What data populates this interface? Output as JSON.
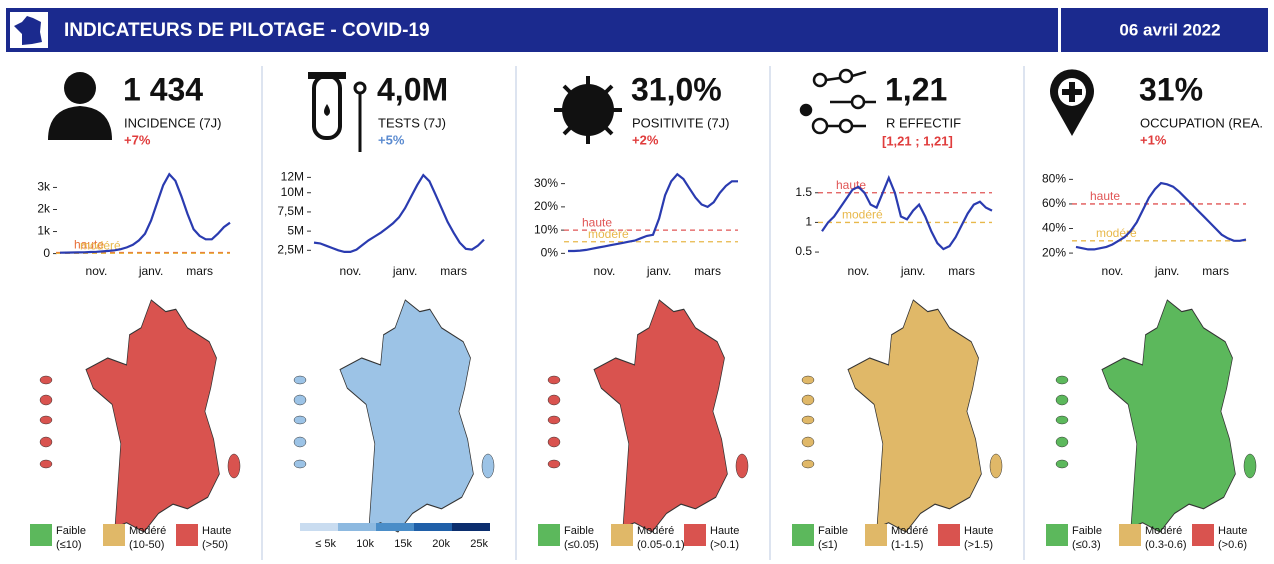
{
  "header": {
    "title": "INDICATEURS DE PILOTAGE - COVID-19",
    "date": "06 avril 2022"
  },
  "chart_data": [
    {
      "type": "line",
      "kpi": "1 434",
      "label": "INCIDENCE (7J)",
      "change": "+7%",
      "change_color": "#e03c3c",
      "color": "#2a3bb0",
      "categories": [
        null,
        null,
        null,
        null,
        null,
        null,
        "nov.",
        null,
        null,
        null,
        null,
        null,
        null,
        null,
        null,
        "janv.",
        null,
        null,
        null,
        null,
        null,
        null,
        null,
        "mars",
        null,
        null,
        null,
        null,
        null
      ],
      "values": [
        40,
        45,
        50,
        55,
        60,
        70,
        80,
        100,
        120,
        150,
        200,
        280,
        400,
        600,
        900,
        1500,
        2300,
        3100,
        3600,
        3300,
        2600,
        1800,
        1100,
        800,
        650,
        650,
        900,
        1200,
        1400
      ],
      "ylim": [
        -200,
        3700
      ],
      "yticks": [
        0,
        {
          "value": 1000,
          "label": "1k"
        },
        {
          "value": 2000,
          "label": "2k"
        },
        {
          "value": 3000,
          "label": "3k"
        }
      ],
      "thresholds": [
        {
          "label": "haute",
          "value": 50,
          "color": "#e8703a"
        },
        {
          "label": "modéré",
          "value": 10,
          "color": "#e8b84a"
        }
      ],
      "legend": [
        {
          "label": "Faible",
          "range": "(≤10)",
          "color": "#5cb85c"
        },
        {
          "label": "Modéré",
          "range": "(10-50)",
          "color": "#e0b868"
        },
        {
          "label": "Haute",
          "range": "(>50)",
          "color": "#d9534f"
        }
      ]
    },
    {
      "type": "line",
      "kpi": "4,0M",
      "label": "TESTS (7J)",
      "change": "+5%",
      "change_color": "#5b8bd0",
      "color": "#2a3bb0",
      "categories": [
        null,
        null,
        null,
        null,
        null,
        null,
        "nov.",
        null,
        null,
        null,
        null,
        null,
        null,
        null,
        null,
        "janv.",
        null,
        null,
        null,
        null,
        null,
        null,
        null,
        "mars",
        null,
        null,
        null,
        null,
        null
      ],
      "values": [
        3500000,
        3400000,
        3100000,
        2800000,
        2500000,
        2300000,
        2300000,
        2600000,
        3200000,
        3800000,
        4300000,
        4800000,
        5400000,
        6000000,
        6800000,
        8000000,
        9500000,
        11000000,
        12300000,
        11500000,
        9800000,
        8000000,
        6200000,
        4800000,
        3500000,
        2700000,
        2600000,
        3100000,
        3900000
      ],
      "ylim": [
        1500000,
        12700000
      ],
      "yticks": [
        {
          "value": 2500000,
          "label": "2,5M"
        },
        {
          "value": 5000000,
          "label": "5M"
        },
        {
          "value": 7500000,
          "label": "7,5M"
        },
        {
          "value": 10000000,
          "label": "10M"
        },
        {
          "value": 12000000,
          "label": "12M"
        }
      ],
      "legend_scale": {
        "labels": [
          "≤ 5k",
          "10k",
          "15k",
          "20k",
          "25k"
        ],
        "colors": [
          "#c9dcf0",
          "#8db9e0",
          "#4a8dc8",
          "#1f5fa8",
          "#0b2e6e"
        ]
      }
    },
    {
      "type": "line",
      "kpi": "31,0%",
      "label": "POSITIVITE (7J)",
      "change": "+2%",
      "change_color": "#e03c3c",
      "color": "#2a3bb0",
      "categories": [
        null,
        null,
        null,
        null,
        null,
        null,
        "nov.",
        null,
        null,
        null,
        null,
        null,
        null,
        null,
        null,
        "janv.",
        null,
        null,
        null,
        null,
        null,
        null,
        null,
        "mars",
        null,
        null,
        null,
        null,
        null
      ],
      "values": [
        1,
        1,
        1.2,
        1.5,
        2,
        2.5,
        3,
        3.5,
        4,
        4.5,
        5,
        5.5,
        6.5,
        7.5,
        8,
        15,
        25,
        31,
        34,
        32,
        28,
        24,
        21,
        20,
        22,
        26,
        29,
        31,
        31
      ],
      "ylim": [
        -2,
        35
      ],
      "yticks": [
        {
          "value": 0,
          "label": "0%"
        },
        {
          "value": 10,
          "label": "10%"
        },
        {
          "value": 20,
          "label": "20%"
        },
        {
          "value": 30,
          "label": "30%"
        }
      ],
      "thresholds": [
        {
          "label": "haute",
          "value": 10,
          "color": "#e05555"
        },
        {
          "label": "modéré",
          "value": 5,
          "color": "#e8b84a"
        }
      ],
      "legend": [
        {
          "label": "Faible",
          "range": "(≤0.05)",
          "color": "#5cb85c"
        },
        {
          "label": "Modéré",
          "range": "(0.05-0.1)",
          "color": "#e0b868"
        },
        {
          "label": "Haute",
          "range": "(>0.1)",
          "color": "#d9534f"
        }
      ]
    },
    {
      "type": "line",
      "kpi": "1,21",
      "label": "R EFFECTIF",
      "interval": "[1,21 ; 1,21]",
      "change_color": "#e03c3c",
      "color": "#2a3bb0",
      "categories": [
        null,
        null,
        null,
        null,
        null,
        null,
        "nov.",
        null,
        null,
        null,
        null,
        null,
        null,
        null,
        null,
        "janv.",
        null,
        null,
        null,
        null,
        null,
        null,
        null,
        "mars",
        null,
        null,
        null,
        null,
        null
      ],
      "values": [
        0.85,
        1.0,
        1.1,
        1.25,
        1.4,
        1.55,
        1.6,
        1.5,
        1.3,
        1.25,
        1.5,
        1.75,
        1.5,
        1.1,
        1.05,
        1.2,
        1.3,
        1.1,
        0.85,
        0.65,
        0.55,
        0.6,
        0.75,
        0.95,
        1.15,
        1.3,
        1.35,
        1.25,
        1.2
      ],
      "ylim": [
        0.4,
        1.85
      ],
      "yticks": [
        0.5,
        1,
        1.5
      ],
      "thresholds": [
        {
          "label": "haute",
          "value": 1.5,
          "color": "#e05555"
        },
        {
          "label": "modéré",
          "value": 1,
          "color": "#e8b84a"
        }
      ],
      "legend": [
        {
          "label": "Faible",
          "range": "(≤1)",
          "color": "#5cb85c"
        },
        {
          "label": "Modéré",
          "range": "(1-1.5)",
          "color": "#e0b868"
        },
        {
          "label": "Haute",
          "range": "(>1.5)",
          "color": "#d9534f"
        }
      ]
    },
    {
      "type": "line",
      "kpi": "31%",
      "label": "OCCUPATION (REA.",
      "change": "+1%",
      "change_color": "#e03c3c",
      "color": "#2a3bb0",
      "categories": [
        null,
        null,
        null,
        null,
        null,
        null,
        "nov.",
        null,
        null,
        null,
        null,
        null,
        null,
        null,
        null,
        "janv.",
        null,
        null,
        null,
        null,
        null,
        null,
        null,
        "mars",
        null,
        null,
        null,
        null,
        null
      ],
      "values": [
        25,
        24,
        23,
        23,
        24,
        25,
        27,
        30,
        33,
        38,
        45,
        55,
        65,
        72,
        77,
        76,
        74,
        70,
        65,
        60,
        55,
        50,
        45,
        40,
        35,
        32,
        30,
        30,
        31
      ],
      "ylim": [
        16,
        86
      ],
      "yticks": [
        {
          "value": 20,
          "label": "20%"
        },
        {
          "value": 40,
          "label": "40%"
        },
        {
          "value": 60,
          "label": "60%"
        },
        {
          "value": 80,
          "label": "80%"
        }
      ],
      "thresholds": [
        {
          "label": "haute",
          "value": 60,
          "color": "#e05555"
        },
        {
          "label": "modéré",
          "value": 30,
          "color": "#e8b84a"
        }
      ],
      "legend": [
        {
          "label": "Faible",
          "range": "(≤0.3)",
          "color": "#5cb85c"
        },
        {
          "label": "Modéré",
          "range": "(0.3-0.6)",
          "color": "#e0b868"
        },
        {
          "label": "Haute",
          "range": "(>0.6)",
          "color": "#d9534f"
        }
      ]
    }
  ]
}
